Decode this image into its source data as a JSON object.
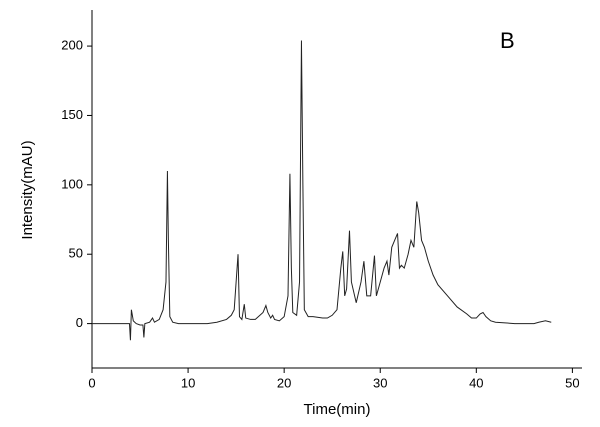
{
  "chart_data": {
    "type": "line",
    "annotation": "B",
    "xlabel": "Time(min)",
    "ylabel": "Intensity(mAU)",
    "color": "#222222",
    "x": [
      0,
      3.9,
      4.0,
      4.1,
      4.3,
      4.6,
      5.0,
      5.3,
      5.4,
      5.5,
      6.0,
      6.3,
      6.5,
      7.0,
      7.4,
      7.7,
      7.85,
      7.95,
      8.1,
      8.4,
      9,
      12,
      13,
      14,
      14.5,
      14.8,
      15.0,
      15.2,
      15.35,
      15.6,
      15.85,
      16.0,
      16.5,
      17,
      17.8,
      18.1,
      18.3,
      18.6,
      18.8,
      19,
      19.5,
      20.0,
      20.4,
      20.6,
      20.75,
      20.9,
      21.3,
      21.6,
      21.8,
      21.95,
      22.1,
      22.5,
      23,
      24,
      24.5,
      25,
      25.5,
      25.9,
      26.1,
      26.3,
      26.5,
      26.8,
      27.0,
      27.5,
      28.0,
      28.3,
      28.6,
      29.0,
      29.4,
      29.6,
      30.0,
      30.4,
      30.7,
      30.9,
      31.2,
      31.5,
      31.8,
      32.0,
      32.2,
      32.5,
      32.9,
      33.2,
      33.5,
      33.8,
      34.0,
      34.3,
      34.6,
      35.0,
      35.5,
      36,
      37,
      38,
      39,
      39.5,
      40,
      40.4,
      40.7,
      41,
      41.5,
      42,
      44,
      46,
      46.5,
      47.2,
      47.8
    ],
    "values": [
      0,
      0,
      -12,
      10,
      2,
      0,
      -1,
      -1,
      -10,
      0,
      1,
      4,
      1,
      3,
      10,
      30,
      110,
      60,
      5,
      1,
      0,
      0,
      1,
      3,
      6,
      10,
      30,
      50,
      5,
      3,
      14,
      4,
      3,
      3,
      8,
      13,
      8,
      4,
      6,
      3,
      2,
      5,
      20,
      108,
      40,
      8,
      6,
      30,
      204,
      100,
      10,
      5,
      5,
      4,
      4,
      6,
      10,
      40,
      52,
      20,
      25,
      67,
      30,
      15,
      30,
      45,
      20,
      20,
      49,
      20,
      30,
      40,
      45,
      35,
      55,
      60,
      65,
      40,
      42,
      40,
      50,
      60,
      55,
      88,
      80,
      60,
      55,
      45,
      35,
      28,
      20,
      12,
      7,
      4,
      4,
      7,
      8,
      5,
      2,
      1,
      0,
      0,
      1,
      2,
      1
    ],
    "xlim": [
      0,
      51
    ],
    "ylim": [
      -32,
      226
    ],
    "xticks": [
      0,
      10,
      20,
      30,
      40,
      50
    ],
    "yticks": [
      0,
      50,
      100,
      150,
      200
    ]
  }
}
